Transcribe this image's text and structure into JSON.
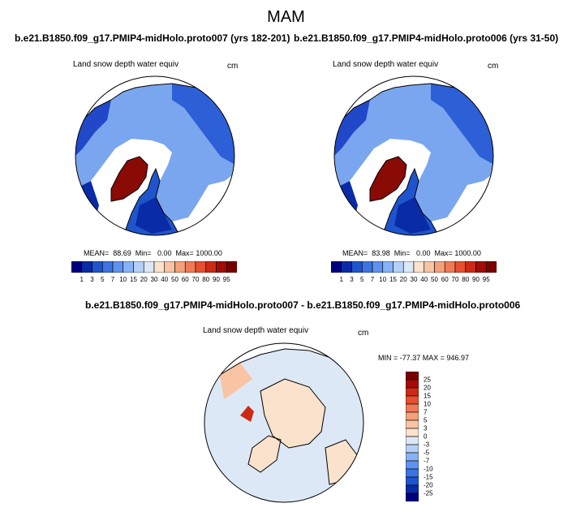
{
  "page": {
    "title": "MAM"
  },
  "panels": [
    {
      "case_title": "b.e21.B1850.f09_g17.PMIP4-midHolo.proto007 (yrs 182-201)",
      "variable": "Land snow depth water equiv",
      "units": "cm",
      "stats": "MEAN=  88.69  Min=   0.00  Max= 1000.00"
    },
    {
      "case_title": "b.e21.B1850.f09_g17.PMIP4-midHolo.proto006 (yrs 31-50)",
      "variable": "Land snow depth water equiv",
      "units": "cm",
      "stats": "MEAN=  83.98  Min=   0.00  Max= 1000.00"
    },
    {
      "case_title": "b.e21.B1850.f09_g17.PMIP4-midHolo.proto007 - b.e21.B1850.f09_g17.PMIP4-midHolo.proto006",
      "variable": "Land snow depth water equiv",
      "units": "cm",
      "stats": "MIN = -77.37 MAX = 946.97"
    }
  ],
  "colorbar_abs": {
    "labels": [
      "1",
      "3",
      "5",
      "7",
      "10",
      "15",
      "20",
      "30",
      "40",
      "50",
      "60",
      "70",
      "80",
      "90",
      "95"
    ],
    "colors": [
      "#00007f",
      "#0a2ba6",
      "#1f55cc",
      "#3c74e0",
      "#5e92ee",
      "#87b2f5",
      "#b4d0f7",
      "#dde8f7",
      "#fbe2cc",
      "#f8c4a3",
      "#f4a07b",
      "#f07a55",
      "#e6502f",
      "#cc2a14",
      "#a00c06",
      "#7a0000"
    ]
  },
  "colorbar_diff": {
    "labels": [
      "25",
      "20",
      "15",
      "10",
      "7",
      "5",
      "3",
      "0",
      "-3",
      "-5",
      "-7",
      "-10",
      "-15",
      "-20",
      "-25"
    ],
    "colors": [
      "#7a0000",
      "#a50b05",
      "#cc2a14",
      "#e6502f",
      "#f07a55",
      "#f4a07b",
      "#f8c4a3",
      "#fbe2cc",
      "#dde8f7",
      "#b4d0f7",
      "#87b2f5",
      "#5e92ee",
      "#3c74e0",
      "#1f55cc",
      "#0a2ba6",
      "#00007f"
    ]
  },
  "colors": {
    "land_low": "#b8d2f2",
    "land_mid": "#3c74e0",
    "land_high": "#0a2ba6",
    "greenland": "#8a0a05",
    "diff_pos": "#fbe2cc",
    "diff_neg": "#dde8f7",
    "ocean": "#ffffff"
  }
}
